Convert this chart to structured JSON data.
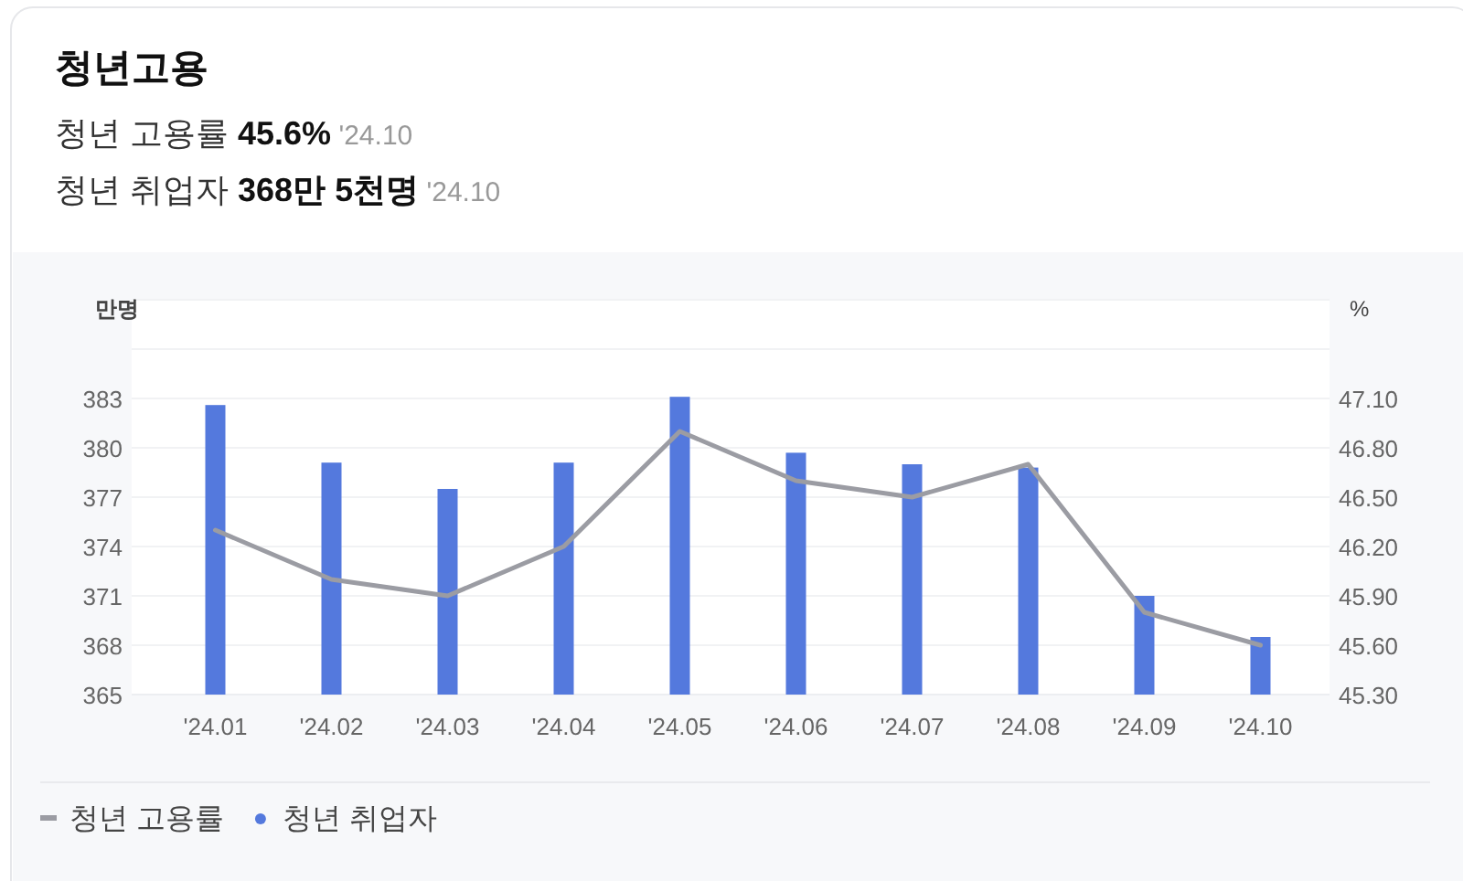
{
  "chart_data": {
    "type": "bar",
    "title": "청년고용",
    "annotations": [
      "청년 고용률 45.6% '24.10",
      "청년 취업자 368만 5천명 '24.10"
    ],
    "ylabel": "만명",
    "y2label": "%",
    "categories": [
      "'24.01",
      "'24.02",
      "'24.03",
      "'24.04",
      "'24.05",
      "'24.06",
      "'24.07",
      "'24.08",
      "'24.09",
      "'24.10"
    ],
    "series": [
      {
        "name": "청년 고용률",
        "type": "line",
        "axis": "y2",
        "color": "#9b9ca3",
        "values": [
          46.3,
          46.0,
          45.9,
          46.2,
          46.9,
          46.6,
          46.5,
          46.7,
          45.8,
          45.6
        ]
      },
      {
        "name": "청년 취업자",
        "color": "#5479dd",
        "values": [
          382.6,
          379.1,
          377.5,
          379.1,
          383.1,
          379.7,
          379.0,
          378.8,
          371.0,
          368.5
        ]
      }
    ],
    "ylim": [
      365,
      389
    ],
    "yticks": [
      365,
      368,
      371,
      374,
      377,
      380,
      383,
      {
        "value": 386,
        "label": null
      },
      {
        "value": 389,
        "label": null
      }
    ],
    "y2lim": [
      45.3,
      47.7
    ],
    "y2ticks": [
      {
        "value": 45.3,
        "label": "45.30"
      },
      {
        "value": 45.6,
        "label": "45.60"
      },
      {
        "value": 45.9,
        "label": "45.90"
      },
      {
        "value": 46.2,
        "label": "46.20"
      },
      {
        "value": 46.5,
        "label": "46.50"
      },
      {
        "value": 46.8,
        "label": "46.80"
      },
      {
        "value": 47.1,
        "label": "47.10"
      },
      {
        "value": 47.4,
        "label": null
      },
      {
        "value": 47.7,
        "label": null
      }
    ],
    "grid": "y",
    "legend": "bottom left",
    "marker": "none",
    "line_style": "solid"
  }
}
